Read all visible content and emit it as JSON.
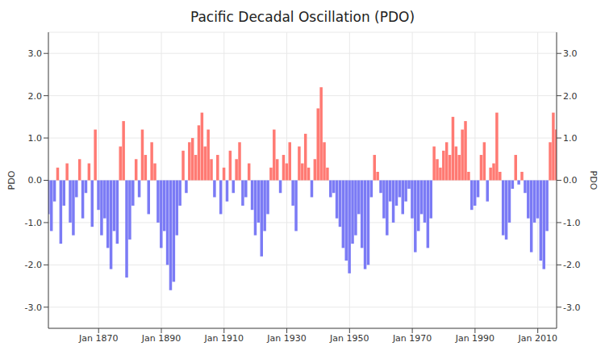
{
  "chart_data": {
    "type": "bar",
    "title": "Pacific Decadal Oscillation (PDO)",
    "y_label": "PDO",
    "x": [
      1854,
      1855,
      1856,
      1857,
      1858,
      1859,
      1860,
      1861,
      1862,
      1863,
      1864,
      1865,
      1866,
      1867,
      1868,
      1869,
      1870,
      1871,
      1872,
      1873,
      1874,
      1875,
      1876,
      1877,
      1878,
      1879,
      1880,
      1881,
      1882,
      1883,
      1884,
      1885,
      1886,
      1887,
      1888,
      1889,
      1890,
      1891,
      1892,
      1893,
      1894,
      1895,
      1896,
      1897,
      1898,
      1899,
      1900,
      1901,
      1902,
      1903,
      1904,
      1905,
      1906,
      1907,
      1908,
      1909,
      1910,
      1911,
      1912,
      1913,
      1914,
      1915,
      1916,
      1917,
      1918,
      1919,
      1920,
      1921,
      1922,
      1923,
      1924,
      1925,
      1926,
      1927,
      1928,
      1929,
      1930,
      1931,
      1932,
      1933,
      1934,
      1935,
      1936,
      1937,
      1938,
      1939,
      1940,
      1941,
      1942,
      1943,
      1944,
      1945,
      1946,
      1947,
      1948,
      1949,
      1950,
      1951,
      1952,
      1953,
      1954,
      1955,
      1956,
      1957,
      1958,
      1959,
      1960,
      1961,
      1962,
      1963,
      1964,
      1965,
      1966,
      1967,
      1968,
      1969,
      1970,
      1971,
      1972,
      1973,
      1974,
      1975,
      1976,
      1977,
      1978,
      1979,
      1980,
      1981,
      1982,
      1983,
      1984,
      1985,
      1986,
      1987,
      1988,
      1989,
      1990,
      1991,
      1992,
      1993,
      1994,
      1995,
      1996,
      1997,
      1998,
      1999,
      2000,
      2001,
      2002,
      2003,
      2004,
      2005,
      2006,
      2007,
      2008,
      2009,
      2010,
      2011,
      2012,
      2013,
      2014,
      2015,
      2016
    ],
    "values": [
      -0.8,
      -1.2,
      -0.5,
      0.3,
      -1.5,
      -0.6,
      0.4,
      -1.0,
      -1.3,
      -0.4,
      0.5,
      -0.9,
      -0.3,
      0.4,
      -1.1,
      1.2,
      -0.7,
      -1.3,
      -0.9,
      -1.6,
      -2.1,
      -1.2,
      -1.5,
      0.8,
      1.4,
      -2.3,
      -1.4,
      -0.6,
      0.5,
      -0.4,
      1.2,
      0.6,
      -0.8,
      0.9,
      0.4,
      -1.0,
      -1.6,
      -1.2,
      -2.0,
      -2.6,
      -2.4,
      -1.3,
      -0.6,
      0.7,
      -0.3,
      0.9,
      1.0,
      0.6,
      1.3,
      1.6,
      0.8,
      1.2,
      0.5,
      -0.4,
      0.6,
      -0.8,
      0.3,
      -0.5,
      0.7,
      -0.3,
      0.5,
      0.9,
      -0.6,
      -0.4,
      0.4,
      -0.7,
      -1.3,
      -1.0,
      -1.8,
      -1.2,
      -0.8,
      0.3,
      1.2,
      0.5,
      -0.3,
      0.6,
      0.4,
      0.9,
      -0.6,
      -1.2,
      0.8,
      0.4,
      1.1,
      0.3,
      -0.4,
      0.5,
      1.7,
      2.2,
      0.9,
      0.3,
      -0.4,
      -0.3,
      -0.9,
      -1.1,
      -1.6,
      -1.9,
      -2.2,
      -1.5,
      -1.3,
      -0.8,
      -1.6,
      -2.1,
      -2.0,
      -0.4,
      0.6,
      0.2,
      -0.3,
      -0.9,
      -1.3,
      -0.5,
      -1.0,
      -0.6,
      -0.4,
      -0.8,
      -0.5,
      -0.2,
      -0.9,
      -1.7,
      -1.2,
      -0.8,
      -1.0,
      -1.6,
      -0.9,
      0.8,
      0.5,
      0.3,
      0.7,
      0.9,
      0.6,
      1.5,
      0.8,
      0.6,
      1.2,
      1.4,
      0.2,
      -0.7,
      -0.6,
      -0.4,
      0.6,
      0.9,
      -0.5,
      0.3,
      0.4,
      1.6,
      0.2,
      -1.3,
      -1.4,
      -1.0,
      -0.2,
      0.6,
      -0.1,
      0.2,
      -0.3,
      -0.9,
      -1.7,
      -1.0,
      -0.9,
      -1.9,
      -2.1,
      -1.2,
      0.9,
      1.6,
      1.2
    ],
    "colors": [
      "#7b7bf5",
      "#7b7bf5",
      "#7b7bf5",
      "#ff7a73",
      "#7b7bf5",
      "#7b7bf5",
      "#ff7a73",
      "#7b7bf5",
      "#7b7bf5",
      "#7b7bf5",
      "#ff7a73",
      "#7b7bf5",
      "#7b7bf5",
      "#ff7a73",
      "#7b7bf5",
      "#ff7a73",
      "#7b7bf5",
      "#7b7bf5",
      "#7b7bf5",
      "#7b7bf5",
      "#7b7bf5",
      "#7b7bf5",
      "#7b7bf5",
      "#ff7a73",
      "#ff7a73",
      "#7b7bf5",
      "#7b7bf5",
      "#7b7bf5",
      "#ff7a73",
      "#7b7bf5",
      "#ff7a73",
      "#ff7a73",
      "#7b7bf5",
      "#ff7a73",
      "#ff7a73",
      "#7b7bf5",
      "#7b7bf5",
      "#7b7bf5",
      "#7b7bf5",
      "#7b7bf5",
      "#7b7bf5",
      "#7b7bf5",
      "#7b7bf5",
      "#ff7a73",
      "#7b7bf5",
      "#ff7a73",
      "#ff7a73",
      "#ff7a73",
      "#ff7a73",
      "#ff7a73",
      "#ff7a73",
      "#ff7a73",
      "#ff7a73",
      "#7b7bf5",
      "#ff7a73",
      "#7b7bf5",
      "#ff7a73",
      "#7b7bf5",
      "#ff7a73",
      "#7b7bf5",
      "#ff7a73",
      "#ff7a73",
      "#7b7bf5",
      "#7b7bf5",
      "#ff7a73",
      "#7b7bf5",
      "#7b7bf5",
      "#7b7bf5",
      "#7b7bf5",
      "#7b7bf5",
      "#7b7bf5",
      "#ff7a73",
      "#ff7a73",
      "#ff7a73",
      "#7b7bf5",
      "#ff7a73",
      "#ff7a73",
      "#ff7a73",
      "#7b7bf5",
      "#7b7bf5",
      "#ff7a73",
      "#ff7a73",
      "#ff7a73",
      "#ff7a73",
      "#7b7bf5",
      "#ff7a73",
      "#ff7a73",
      "#ff7a73",
      "#ff7a73",
      "#ff7a73",
      "#7b7bf5",
      "#7b7bf5",
      "#7b7bf5",
      "#7b7bf5",
      "#7b7bf5",
      "#7b7bf5",
      "#7b7bf5",
      "#7b7bf5",
      "#7b7bf5",
      "#7b7bf5",
      "#7b7bf5",
      "#7b7bf5",
      "#7b7bf5",
      "#7b7bf5",
      "#ff7a73",
      "#ff7a73",
      "#7b7bf5",
      "#7b7bf5",
      "#7b7bf5",
      "#7b7bf5",
      "#7b7bf5",
      "#7b7bf5",
      "#7b7bf5",
      "#7b7bf5",
      "#7b7bf5",
      "#7b7bf5",
      "#7b7bf5",
      "#7b7bf5",
      "#7b7bf5",
      "#7b7bf5",
      "#7b7bf5",
      "#7b7bf5",
      "#7b7bf5",
      "#ff7a73",
      "#ff7a73",
      "#ff7a73",
      "#ff7a73",
      "#ff7a73",
      "#ff7a73",
      "#ff7a73",
      "#ff7a73",
      "#ff7a73",
      "#ff7a73",
      "#ff7a73",
      "#ff7a73",
      "#7b7bf5",
      "#7b7bf5",
      "#7b7bf5",
      "#ff7a73",
      "#ff7a73",
      "#7b7bf5",
      "#ff7a73",
      "#ff7a73",
      "#ff7a73",
      "#ff7a73",
      "#7b7bf5",
      "#7b7bf5",
      "#7b7bf5",
      "#7b7bf5",
      "#ff7a73",
      "#7b7bf5",
      "#ff7a73",
      "#7b7bf5",
      "#7b7bf5",
      "#7b7bf5",
      "#7b7bf5",
      "#7b7bf5",
      "#7b7bf5",
      "#7b7bf5",
      "#7b7bf5",
      "#ff7a73",
      "#ff7a73",
      "#ff7a73"
    ],
    "xlim": [
      1854,
      2016
    ],
    "xticks": [
      {
        "value": 1870,
        "label": "Jan 1870"
      },
      {
        "value": 1890,
        "label": "Jan 1890"
      },
      {
        "value": 1910,
        "label": "Jan 1910"
      },
      {
        "value": 1930,
        "label": "Jan 1930"
      },
      {
        "value": 1950,
        "label": "Jan 1950"
      },
      {
        "value": 1970,
        "label": "Jan 1970"
      },
      {
        "value": 1990,
        "label": "Jan 1990"
      },
      {
        "value": 2010,
        "label": "Jan 2010"
      }
    ],
    "ylim": [
      -3.5,
      3.5
    ],
    "yticks": [
      {
        "value": -3,
        "label": "-3.0"
      },
      {
        "value": -2,
        "label": "-2.0"
      },
      {
        "value": -1,
        "label": "-1.0"
      },
      {
        "value": 0,
        "label": "0.0"
      },
      {
        "value": 1,
        "label": "1.0"
      },
      {
        "value": 2,
        "label": "2.0"
      },
      {
        "value": 3,
        "label": "3.0"
      }
    ],
    "grid": true
  }
}
